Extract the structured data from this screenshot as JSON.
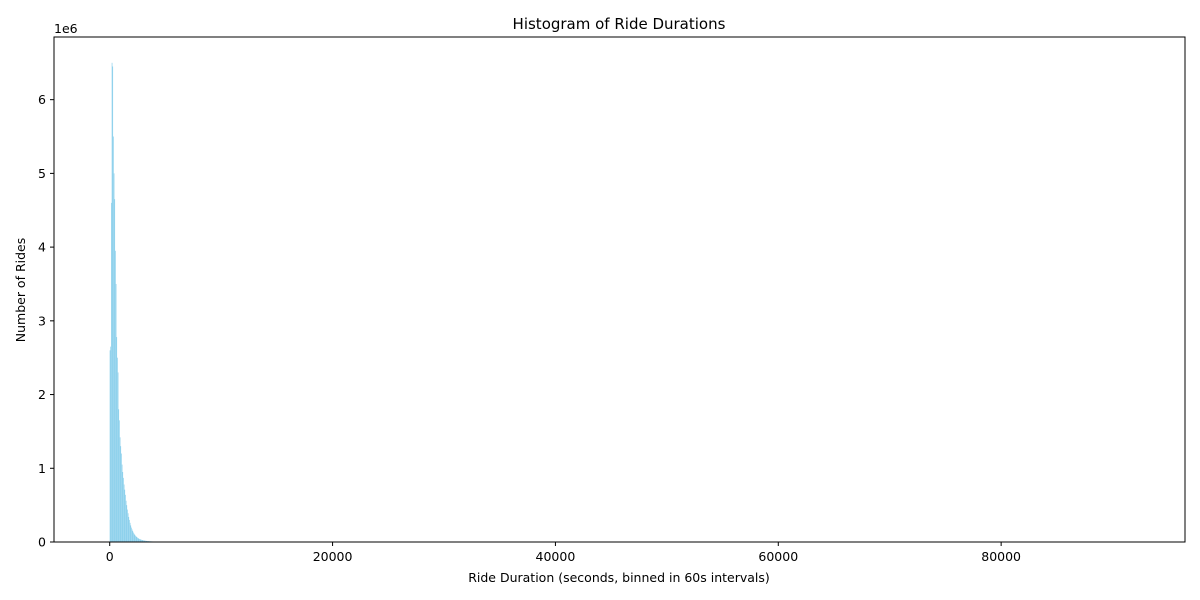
{
  "chart_data": {
    "type": "bar",
    "title": "Histogram of Ride Durations",
    "xlabel": "Ride Duration (seconds, binned in 60s intervals)",
    "ylabel": "Number of Rides",
    "y_offset_label": "1e6",
    "bin_width": 60,
    "xlim": [
      -5000,
      96500
    ],
    "ylim": [
      0,
      6850000
    ],
    "x_ticks": [
      {
        "value": 0,
        "label": "0"
      },
      {
        "value": 20000,
        "label": "20000"
      },
      {
        "value": 40000,
        "label": "40000"
      },
      {
        "value": 60000,
        "label": "60000"
      },
      {
        "value": 80000,
        "label": "80000"
      }
    ],
    "y_ticks": [
      {
        "value": 0,
        "label": "0"
      },
      {
        "value": 1000000,
        "label": "1"
      },
      {
        "value": 2000000,
        "label": "2"
      },
      {
        "value": 3000000,
        "label": "3"
      },
      {
        "value": 4000000,
        "label": "4"
      },
      {
        "value": 5000000,
        "label": "5"
      },
      {
        "value": 6000000,
        "label": "6"
      }
    ],
    "grid": false,
    "bar_color": "#87ceeb",
    "x": [
      0,
      60,
      120,
      180,
      240,
      300,
      360,
      420,
      480,
      540,
      600,
      660,
      720,
      780,
      840,
      900,
      960,
      1020,
      1080,
      1140,
      1200,
      1260,
      1320,
      1380,
      1440,
      1500,
      1560,
      1620,
      1680,
      1740,
      1800,
      1860,
      1920,
      1980,
      2040,
      2100,
      2160,
      2220,
      2280,
      2340,
      2400,
      2460,
      2520,
      2580,
      2640,
      2700,
      2760,
      2820,
      2880,
      2940,
      3000,
      3060,
      3120,
      3180,
      3240,
      3300,
      3360,
      3420,
      3480,
      3540,
      3600,
      3660,
      3720,
      3780,
      3840,
      3900,
      3960,
      4020,
      4080,
      4140,
      4200,
      4260,
      4320,
      4380,
      4440,
      4500,
      4560,
      4620,
      4680,
      4740,
      4800,
      4860,
      4920,
      4980,
      5040,
      5100,
      5160,
      5220,
      5280,
      5340,
      5400,
      5460,
      5520,
      5580,
      5640,
      5700,
      5760,
      5820,
      5880,
      5940,
      6000,
      6060,
      6120,
      6180,
      6240,
      6300,
      6360,
      6420,
      6480,
      6540,
      6600,
      6660,
      6720,
      6780,
      6840,
      6900,
      6960,
      7020,
      7080,
      7140,
      7200,
      7260,
      7320,
      7380,
      7440,
      7500,
      7560,
      7620,
      7680,
      7740,
      7800,
      7860,
      7920,
      7980
    ],
    "values": [
      2600000,
      2650000,
      4600000,
      6500000,
      6450000,
      5500000,
      5000000,
      4650000,
      3950000,
      3500000,
      2780000,
      2500000,
      2300000,
      1800000,
      1650000,
      1420000,
      1300000,
      1200000,
      1050000,
      950000,
      870000,
      780000,
      710000,
      640000,
      560000,
      500000,
      440000,
      390000,
      340000,
      300000,
      260000,
      225000,
      195000,
      170000,
      148000,
      128000,
      112000,
      98000,
      86000,
      76000,
      67000,
      59000,
      52000,
      46000,
      41000,
      37000,
      33000,
      30000,
      27000,
      24500,
      22000,
      20000,
      18300,
      16700,
      15300,
      14000,
      12900,
      11900,
      11000,
      10200,
      9500,
      8800,
      8200,
      7600,
      7100,
      6600,
      6200,
      5800,
      5400,
      5100,
      4800,
      4500,
      4200,
      4000,
      3750,
      3500,
      3300,
      3100,
      2900,
      2750,
      2600,
      2450,
      2300,
      2180,
      2060,
      1950,
      1850,
      1750,
      1660,
      1580,
      1500,
      1420,
      1350,
      1280,
      1220,
      1160,
      1100,
      1050,
      1000,
      950,
      900,
      860,
      820,
      780,
      740,
      705,
      670,
      640,
      610,
      580,
      555,
      530,
      505,
      480,
      460,
      440,
      420,
      400,
      382,
      365,
      348,
      332,
      318,
      304,
      290,
      277,
      265,
      253,
      242,
      231,
      221,
      211,
      202,
      193
    ]
  }
}
